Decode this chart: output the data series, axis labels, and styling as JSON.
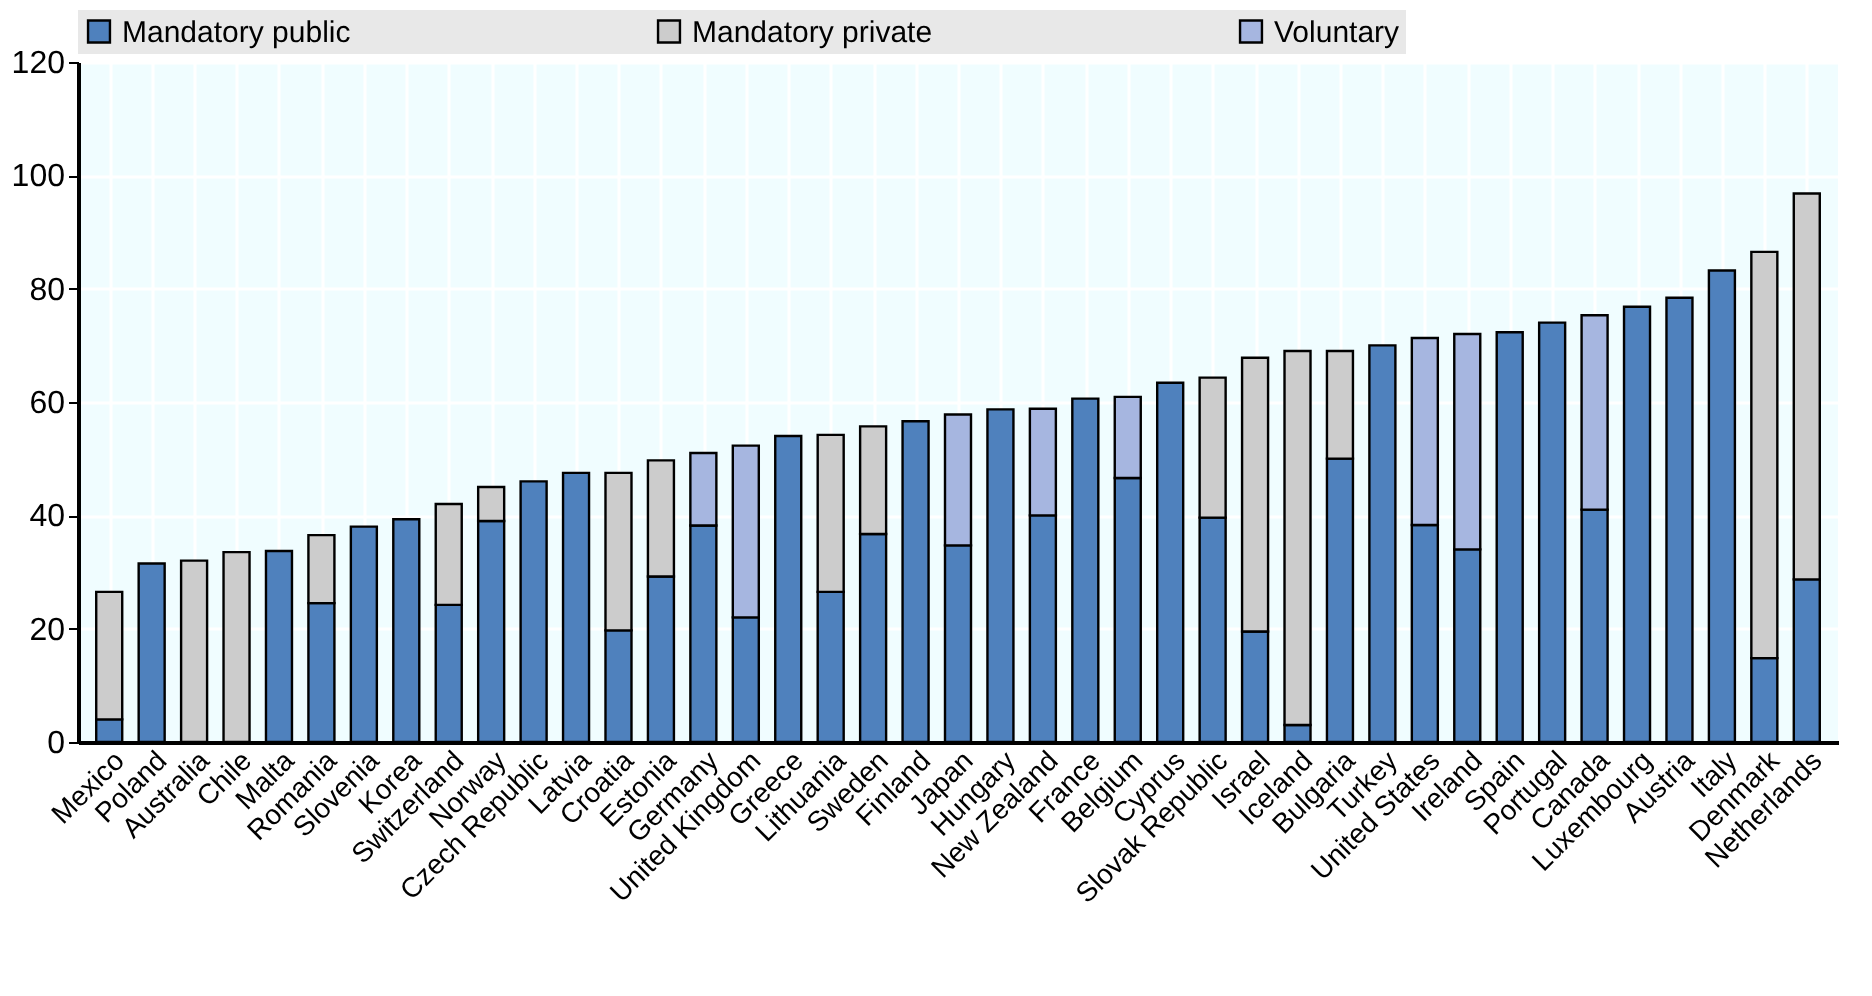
{
  "chart_data": {
    "type": "bar",
    "stacked": true,
    "legend": "top",
    "grid": true,
    "categories": [
      "Mexico",
      "Poland",
      "Australia",
      "Chile",
      "Malta",
      "Romania",
      "Slovenia",
      "Korea",
      "Switzerland",
      "Norway",
      "Czech Republic",
      "Latvia",
      "Croatia",
      "Estonia",
      "Germany",
      "United Kingdom",
      "Greece",
      "Lithuania",
      "Sweden",
      "Finland",
      "Japan",
      "Hungary",
      "New Zealand",
      "France",
      "Belgium",
      "Cyprus",
      "Slovak Republic",
      "Israel",
      "Iceland",
      "Bulgaria",
      "Turkey",
      "United States",
      "Ireland",
      "Spain",
      "Portugal",
      "Canada",
      "Luxembourg",
      "Austria",
      "Italy",
      "Denmark",
      "Netherlands"
    ],
    "ylim": [
      0,
      120
    ],
    "yticks": [
      0,
      20,
      40,
      60,
      80,
      100,
      120
    ],
    "series": [
      {
        "name": "Mandatory public",
        "color": "#4f81bd",
        "values": [
          4,
          31.5,
          null,
          null,
          33.7,
          24.5,
          38,
          39.3,
          24.2,
          39,
          46,
          47.5,
          19.7,
          29.2,
          38.2,
          22,
          54,
          26.5,
          36.7,
          56.6,
          34.7,
          58.7,
          40,
          60.6,
          46.6,
          63.4,
          39.6,
          19.5,
          3,
          50,
          70,
          38.3,
          34,
          72.3,
          74,
          41,
          76.8,
          78.4,
          83.2,
          14.8,
          28.7
        ]
      },
      {
        "name": "Mandatory private",
        "color": "#cccccc",
        "values": [
          22.5,
          null,
          32,
          33.5,
          null,
          12,
          null,
          null,
          17.8,
          6,
          null,
          null,
          27.8,
          20.5,
          null,
          null,
          null,
          27.7,
          19,
          null,
          null,
          null,
          null,
          null,
          null,
          null,
          24.7,
          48.3,
          66,
          19,
          null,
          null,
          null,
          null,
          null,
          null,
          null,
          null,
          null,
          71.7,
          68.1
        ]
      },
      {
        "name": "Voluntary",
        "color": "#a6b6e0",
        "values": [
          null,
          null,
          null,
          null,
          null,
          null,
          null,
          null,
          null,
          null,
          null,
          null,
          null,
          null,
          12.8,
          30.3,
          null,
          null,
          null,
          null,
          23.1,
          null,
          18.8,
          null,
          14.3,
          null,
          null,
          null,
          null,
          null,
          null,
          33,
          38,
          null,
          null,
          34.3,
          null,
          null,
          null,
          null,
          null
        ]
      }
    ]
  }
}
